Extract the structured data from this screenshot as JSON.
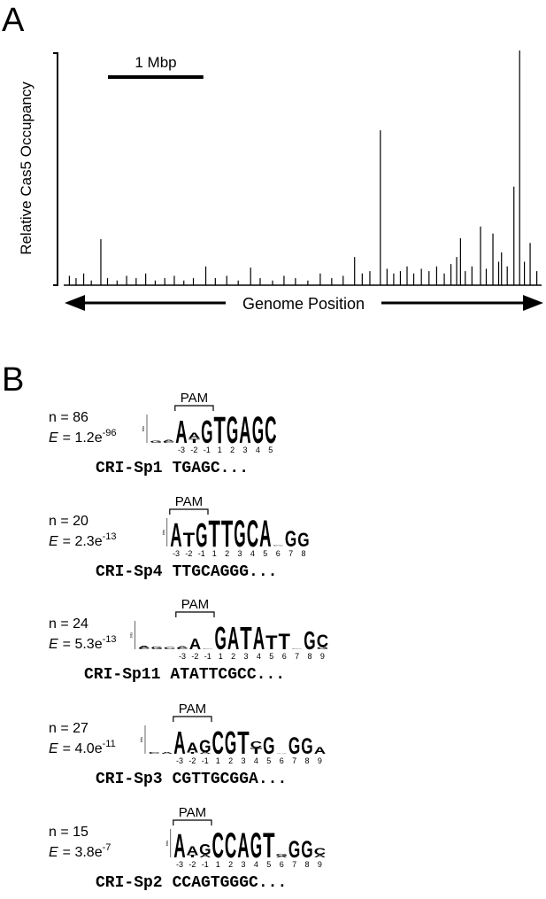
{
  "chart_data": {
    "type": "bar",
    "panel_label": "A",
    "y_label": "Relative Cas5 Occupancy",
    "x_label": "Genome Position",
    "scale_bar_label": "1 Mbp",
    "scale_bar_length": 1,
    "color": "#000000",
    "xlim": [
      0,
      5
    ],
    "ylim": [
      0,
      1
    ],
    "x": [
      0.05,
      0.12,
      0.2,
      0.28,
      0.38,
      0.45,
      0.55,
      0.65,
      0.75,
      0.85,
      0.95,
      1.05,
      1.15,
      1.25,
      1.35,
      1.48,
      1.58,
      1.7,
      1.82,
      1.95,
      2.05,
      2.18,
      2.3,
      2.42,
      2.55,
      2.68,
      2.8,
      2.92,
      3.04,
      3.12,
      3.2,
      3.31,
      3.38,
      3.45,
      3.52,
      3.59,
      3.66,
      3.74,
      3.82,
      3.9,
      3.98,
      4.05,
      4.11,
      4.15,
      4.2,
      4.27,
      4.36,
      4.42,
      4.49,
      4.55,
      4.58,
      4.64,
      4.71,
      4.77,
      4.82,
      4.88,
      4.95
    ],
    "values": [
      0.04,
      0.03,
      0.05,
      0.02,
      0.196,
      0.03,
      0.02,
      0.04,
      0.03,
      0.05,
      0.02,
      0.03,
      0.04,
      0.02,
      0.03,
      0.08,
      0.03,
      0.04,
      0.02,
      0.075,
      0.03,
      0.02,
      0.04,
      0.03,
      0.02,
      0.05,
      0.03,
      0.04,
      0.12,
      0.05,
      0.06,
      0.66,
      0.07,
      0.05,
      0.06,
      0.08,
      0.05,
      0.07,
      0.06,
      0.08,
      0.05,
      0.09,
      0.12,
      0.2,
      0.06,
      0.08,
      0.25,
      0.07,
      0.22,
      0.1,
      0.14,
      0.08,
      0.42,
      1.0,
      0.1,
      0.18,
      0.06
    ]
  },
  "panel_b": {
    "label": "B",
    "pam_label": "PAM",
    "bits_label": "bits",
    "bits_lim": [
      0,
      2
    ],
    "motifs": [
      {
        "n_label": "n = 86",
        "e_symbol": "E",
        "e_value": "= 1.2e",
        "e_exponent": "-96",
        "name": "CRI-Sp1",
        "sequence": "TGAGC...",
        "columns": [
          {
            "label": null,
            "letters": [
              {
                "letter": "G",
                "bits": 0.15
              }
            ]
          },
          {
            "label": null,
            "letters": [
              {
                "letter": "C",
                "bits": 0.1
              },
              {
                "letter": "A",
                "bits": 0.1
              }
            ]
          },
          {
            "label": "-3",
            "letters": [
              {
                "letter": "A",
                "bits": 1.6
              }
            ]
          },
          {
            "label": "-2",
            "letters": [
              {
                "letter": "T",
                "bits": 0.3
              },
              {
                "letter": "A",
                "bits": 0.4
              }
            ]
          },
          {
            "label": "-1",
            "letters": [
              {
                "letter": "G",
                "bits": 1.6
              }
            ]
          },
          {
            "label": "1",
            "letters": [
              {
                "letter": "T",
                "bits": 1.9
              }
            ]
          },
          {
            "label": "2",
            "letters": [
              {
                "letter": "G",
                "bits": 1.9
              }
            ]
          },
          {
            "label": "3",
            "letters": [
              {
                "letter": "A",
                "bits": 1.9
              }
            ]
          },
          {
            "label": "4",
            "letters": [
              {
                "letter": "G",
                "bits": 1.9
              }
            ]
          },
          {
            "label": "5",
            "letters": [
              {
                "letter": "C",
                "bits": 1.9
              }
            ]
          }
        ]
      },
      {
        "n_label": "n = 20",
        "e_symbol": "E",
        "e_value": "= 2.3e",
        "e_exponent": "-13",
        "name": "CRI-Sp4",
        "sequence": "TTGCAGGG...",
        "columns": [
          {
            "label": "-3",
            "letters": [
              {
                "letter": "A",
                "bits": 1.7
              }
            ]
          },
          {
            "label": "-2",
            "letters": [
              {
                "letter": "T",
                "bits": 1.0
              }
            ]
          },
          {
            "label": "-1",
            "letters": [
              {
                "letter": "G",
                "bits": 1.7
              }
            ]
          },
          {
            "label": "1",
            "letters": [
              {
                "letter": "T",
                "bits": 1.9
              }
            ]
          },
          {
            "label": "2",
            "letters": [
              {
                "letter": "T",
                "bits": 1.9
              }
            ]
          },
          {
            "label": "3",
            "letters": [
              {
                "letter": "G",
                "bits": 1.9
              }
            ]
          },
          {
            "label": "4",
            "letters": [
              {
                "letter": "C",
                "bits": 1.9
              }
            ]
          },
          {
            "label": "5",
            "letters": [
              {
                "letter": "A",
                "bits": 1.9
              }
            ]
          },
          {
            "label": "6",
            "letters": [
              {
                "letter": "A",
                "bits": 0.05
              },
              {
                "letter": "G",
                "bits": 0.05
              }
            ]
          },
          {
            "label": "7",
            "letters": [
              {
                "letter": "G",
                "bits": 1.1
              }
            ]
          },
          {
            "label": "8",
            "letters": [
              {
                "letter": "G",
                "bits": 1.0
              }
            ]
          }
        ]
      },
      {
        "n_label": "n = 24",
        "e_symbol": "E",
        "e_value": "= 5.3e",
        "e_exponent": "-13",
        "name": "CRI-Sp11",
        "sequence": "ATATTCGCC...",
        "columns": [
          {
            "label": null,
            "letters": [
              {
                "letter": "C",
                "bits": 0.1
              },
              {
                "letter": "A",
                "bits": 0.15
              }
            ]
          },
          {
            "label": null,
            "letters": [
              {
                "letter": "G",
                "bits": 0.2
              }
            ]
          },
          {
            "label": null,
            "letters": [
              {
                "letter": "C",
                "bits": 0.15
              }
            ]
          },
          {
            "label": "-3",
            "letters": [
              {
                "letter": "C",
                "bits": 0.1
              },
              {
                "letter": "A",
                "bits": 0.1
              }
            ]
          },
          {
            "label": "-2",
            "letters": [
              {
                "letter": "A",
                "bits": 0.8
              }
            ]
          },
          {
            "label": "-1",
            "letters": [
              {
                "letter": "G",
                "bits": 0.05
              }
            ]
          },
          {
            "label": "1",
            "letters": [
              {
                "letter": "G",
                "bits": 1.6
              }
            ]
          },
          {
            "label": "2",
            "letters": [
              {
                "letter": "A",
                "bits": 1.6
              }
            ]
          },
          {
            "label": "3",
            "letters": [
              {
                "letter": "T",
                "bits": 1.6
              }
            ]
          },
          {
            "label": "4",
            "letters": [
              {
                "letter": "A",
                "bits": 1.6
              }
            ]
          },
          {
            "label": "5",
            "letters": [
              {
                "letter": "T",
                "bits": 1.0
              }
            ]
          },
          {
            "label": "6",
            "letters": [
              {
                "letter": "T",
                "bits": 1.1
              }
            ]
          },
          {
            "label": "7",
            "letters": [
              {
                "letter": "G",
                "bits": 0.05
              }
            ]
          },
          {
            "label": "8",
            "letters": [
              {
                "letter": "G",
                "bits": 1.3
              }
            ]
          },
          {
            "label": "9",
            "letters": [
              {
                "letter": "G",
                "bits": 0.15
              },
              {
                "letter": "C",
                "bits": 0.9
              }
            ]
          }
        ]
      },
      {
        "n_label": "n = 27",
        "e_symbol": "E",
        "e_value": "= 4.0e",
        "e_exponent": "-11",
        "name": "CRI-Sp3",
        "sequence": "CGTTGCGGA...",
        "columns": [
          {
            "label": null,
            "letters": [
              {
                "letter": "C",
                "bits": 0.1
              }
            ]
          },
          {
            "label": null,
            "letters": [
              {
                "letter": "A",
                "bits": 0.1
              }
            ]
          },
          {
            "label": "-3",
            "letters": [
              {
                "letter": "A",
                "bits": 1.6
              }
            ]
          },
          {
            "label": "-2",
            "letters": [
              {
                "letter": "T",
                "bits": 0.1
              },
              {
                "letter": "A",
                "bits": 0.7
              }
            ]
          },
          {
            "label": "-1",
            "letters": [
              {
                "letter": "A",
                "bits": 0.1
              },
              {
                "letter": "G",
                "bits": 0.9
              }
            ]
          },
          {
            "label": "1",
            "letters": [
              {
                "letter": "C",
                "bits": 1.6
              }
            ]
          },
          {
            "label": "2",
            "letters": [
              {
                "letter": "G",
                "bits": 1.6
              }
            ]
          },
          {
            "label": "3",
            "letters": [
              {
                "letter": "T",
                "bits": 1.6
              }
            ]
          },
          {
            "label": "4",
            "letters": [
              {
                "letter": "T",
                "bits": 0.4
              },
              {
                "letter": "C",
                "bits": 0.5
              }
            ]
          },
          {
            "label": "5",
            "letters": [
              {
                "letter": "G",
                "bits": 1.2
              }
            ]
          },
          {
            "label": "6",
            "letters": [
              {
                "letter": "A",
                "bits": 0.05
              }
            ]
          },
          {
            "label": "7",
            "letters": [
              {
                "letter": "G",
                "bits": 1.2
              }
            ]
          },
          {
            "label": "8",
            "letters": [
              {
                "letter": "G",
                "bits": 1.1
              }
            ]
          },
          {
            "label": "9",
            "letters": [
              {
                "letter": "A",
                "bits": 0.5
              }
            ]
          }
        ]
      },
      {
        "n_label": "n = 15",
        "e_symbol": "E",
        "e_value": "= 3.8e",
        "e_exponent": "-7",
        "name": "CRI-Sp2",
        "sequence": "CCAGTGGGC...",
        "columns": [
          {
            "label": "-3",
            "letters": [
              {
                "letter": "A",
                "bits": 1.7
              }
            ]
          },
          {
            "label": "-2",
            "letters": [
              {
                "letter": "T",
                "bits": 0.2
              },
              {
                "letter": "A",
                "bits": 0.6
              }
            ]
          },
          {
            "label": "-1",
            "letters": [
              {
                "letter": "A",
                "bits": 0.2
              },
              {
                "letter": "G",
                "bits": 0.8
              }
            ]
          },
          {
            "label": "1",
            "letters": [
              {
                "letter": "C",
                "bits": 1.8
              }
            ]
          },
          {
            "label": "2",
            "letters": [
              {
                "letter": "C",
                "bits": 1.8
              }
            ]
          },
          {
            "label": "3",
            "letters": [
              {
                "letter": "A",
                "bits": 1.8
              }
            ]
          },
          {
            "label": "4",
            "letters": [
              {
                "letter": "G",
                "bits": 1.8
              }
            ]
          },
          {
            "label": "5",
            "letters": [
              {
                "letter": "T",
                "bits": 1.8
              }
            ]
          },
          {
            "label": "6",
            "letters": [
              {
                "letter": "A",
                "bits": 0.1
              },
              {
                "letter": "G",
                "bits": 0.15
              }
            ]
          },
          {
            "label": "7",
            "letters": [
              {
                "letter": "G",
                "bits": 1.2
              }
            ]
          },
          {
            "label": "8",
            "letters": [
              {
                "letter": "G",
                "bits": 1.2
              }
            ]
          },
          {
            "label": "9",
            "letters": [
              {
                "letter": "A",
                "bits": 0.2
              },
              {
                "letter": "C",
                "bits": 0.5
              }
            ]
          }
        ]
      }
    ]
  }
}
